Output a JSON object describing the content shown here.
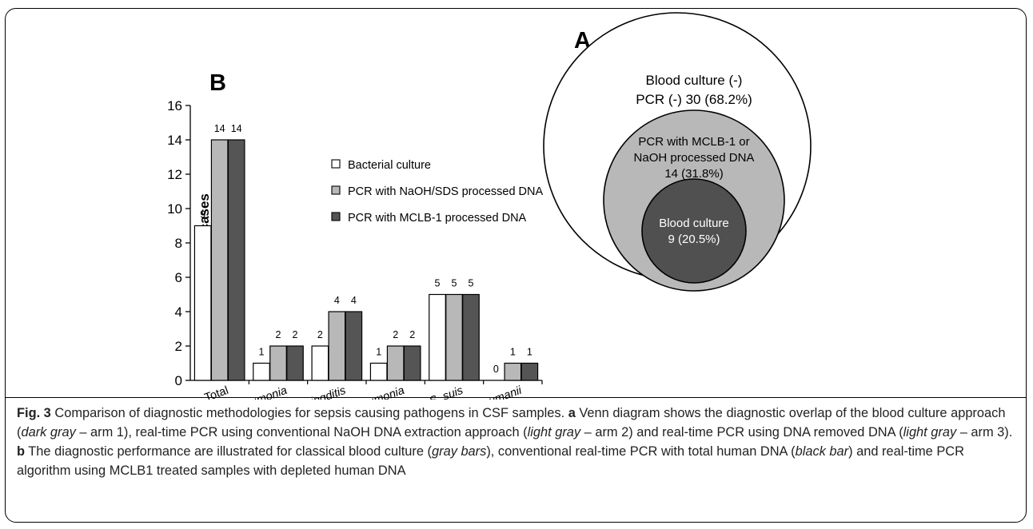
{
  "chart_data": [
    {
      "type": "bar",
      "panel_label": "B",
      "title": "",
      "xlabel": "",
      "ylabel": "Detected cases",
      "ylim": [
        0,
        16
      ],
      "yticks": [
        0,
        2,
        4,
        6,
        8,
        10,
        12,
        14,
        16
      ],
      "grid": false,
      "legend_position": "center",
      "categories": [
        "Total",
        "K. pneumonia",
        "N. meningditis",
        "S. pneumonia",
        "S. suis",
        "A. baumanii"
      ],
      "series": [
        {
          "name": "Bacterial culture",
          "color": "#ffffff",
          "values": [
            9,
            1,
            2,
            1,
            5,
            0
          ]
        },
        {
          "name": "PCR with NaOH/SDS processed DNA",
          "color": "#b8b8b8",
          "values": [
            14,
            2,
            4,
            2,
            5,
            1
          ]
        },
        {
          "name": "PCR with MCLB-1  processed DNA",
          "color": "#555555",
          "values": [
            14,
            2,
            4,
            2,
            5,
            1
          ]
        }
      ],
      "data_labels": true
    }
  ],
  "venn": {
    "panel_label": "A",
    "outer": {
      "line1": "Blood culture (-)",
      "line2": "PCR (-) 30 (68.2%)",
      "color": "#ffffff"
    },
    "middle": {
      "line1": "PCR with MCLB-1  or",
      "line2": "NaOH processed DNA",
      "line3": "14 (31.8%)",
      "color": "#b8b8b8"
    },
    "inner": {
      "line1": "Blood culture",
      "line2": "9 (20.5%)",
      "color": "#505050"
    }
  },
  "caption": {
    "fig_label": "Fig. 3",
    "title_text": "Comparison of diagnostic methodologies for sepsis causing pathogens in CSF samples.",
    "part_a_label": "a",
    "part_a_1": "Venn diagram shows the diagnostic overlap of the blood culture approach (",
    "part_a_2": "dark gray",
    "part_a_3": " – arm 1), real-time PCR using conventional NaOH DNA extraction approach (",
    "part_a_4": "light gray",
    "part_a_5": " – arm 2) and real-time PCR using DNA removed DNA (",
    "part_a_6": "light gray",
    "part_a_7": " – arm 3).",
    "part_b_label": "b",
    "part_b_1": "The diagnostic performance are illustrated for classical blood culture (",
    "part_b_2": "gray bars",
    "part_b_3": "), conventional real-time PCR with total human DNA (",
    "part_b_4": "black bar",
    "part_b_5": ") and real-time PCR algorithm using MCLB1 treated samples with depleted human DNA"
  }
}
